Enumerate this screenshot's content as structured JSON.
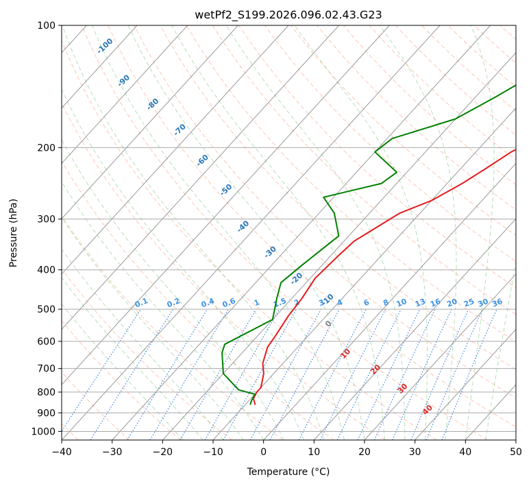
{
  "chart_data": {
    "type": "line",
    "title": "wetPf2_S199.2026.096.02.43.G23",
    "xlabel": "Temperature (°C)",
    "ylabel": "Pressure (hPa)",
    "xlim": [
      -40,
      50
    ],
    "ylim": [
      1050,
      100
    ],
    "x_ticks": [
      -40,
      -30,
      -20,
      -10,
      0,
      10,
      20,
      30,
      40,
      50
    ],
    "x_tick_labels": [
      "−40",
      "−30",
      "−20",
      "−10",
      "0",
      "10",
      "20",
      "30",
      "40",
      "50"
    ],
    "y_ticks": [
      100,
      200,
      300,
      400,
      500,
      600,
      700,
      800,
      900,
      1000
    ],
    "y_tick_labels": [
      "100",
      "200",
      "300",
      "400",
      "500",
      "600",
      "700",
      "800",
      "900",
      "1000"
    ],
    "isotherms": [
      -120,
      -110,
      -100,
      -90,
      -80,
      -70,
      -60,
      -50,
      -40,
      -30,
      -20,
      -10,
      0,
      10,
      20,
      30,
      40,
      50
    ],
    "series": [
      {
        "name": "Temperature",
        "color": "#e41a1c",
        "points": [
          [
            -8,
            860
          ],
          [
            -9.5,
            830
          ],
          [
            -10,
            800
          ],
          [
            -10,
            780
          ],
          [
            -12,
            720
          ],
          [
            -14,
            680
          ],
          [
            -16,
            620
          ],
          [
            -16.5,
            580
          ],
          [
            -17.5,
            520
          ],
          [
            -18,
            470
          ],
          [
            -19,
            420
          ],
          [
            -18.5,
            370
          ],
          [
            -18,
            340
          ],
          [
            -14,
            290
          ],
          [
            -10,
            270
          ],
          [
            -7,
            245
          ],
          [
            -5,
            225
          ],
          [
            -3,
            205
          ],
          [
            1,
            185
          ],
          [
            5,
            160
          ],
          [
            9,
            140
          ],
          [
            15,
            120
          ],
          [
            22,
            100
          ]
        ]
      },
      {
        "name": "Dewpoint",
        "color": "#008000",
        "points": [
          [
            -9,
            860
          ],
          [
            -9.5,
            840
          ],
          [
            -10,
            810
          ],
          [
            -14,
            790
          ],
          [
            -20,
            720
          ],
          [
            -24,
            640
          ],
          [
            -25,
            610
          ],
          [
            -20,
            530
          ],
          [
            -23,
            470
          ],
          [
            -25,
            430
          ],
          [
            -24,
            390
          ],
          [
            -22,
            330
          ],
          [
            -27,
            290
          ],
          [
            -32,
            265
          ],
          [
            -23,
            245
          ],
          [
            -22,
            230
          ],
          [
            -30,
            205
          ],
          [
            -29,
            190
          ],
          [
            -20,
            170
          ],
          [
            -16,
            150
          ],
          [
            -12,
            130
          ],
          [
            -8,
            110
          ],
          [
            -5,
            100
          ]
        ]
      }
    ],
    "isotherm_labels": [
      "-100",
      "-90",
      "-80",
      "-70",
      "-60",
      "-50",
      "-40",
      "-30",
      "-20",
      "-10"
    ],
    "mixing_ratio_labels": [
      "0.1",
      "0.2",
      "0.4",
      "0.6",
      "1",
      "1.5",
      "2",
      "3",
      "4",
      "6",
      "8",
      "10",
      "13",
      "16",
      "20",
      "25",
      "30",
      "36"
    ],
    "theta_e_labels": [
      "0",
      "10",
      "20",
      "30",
      "40"
    ]
  }
}
